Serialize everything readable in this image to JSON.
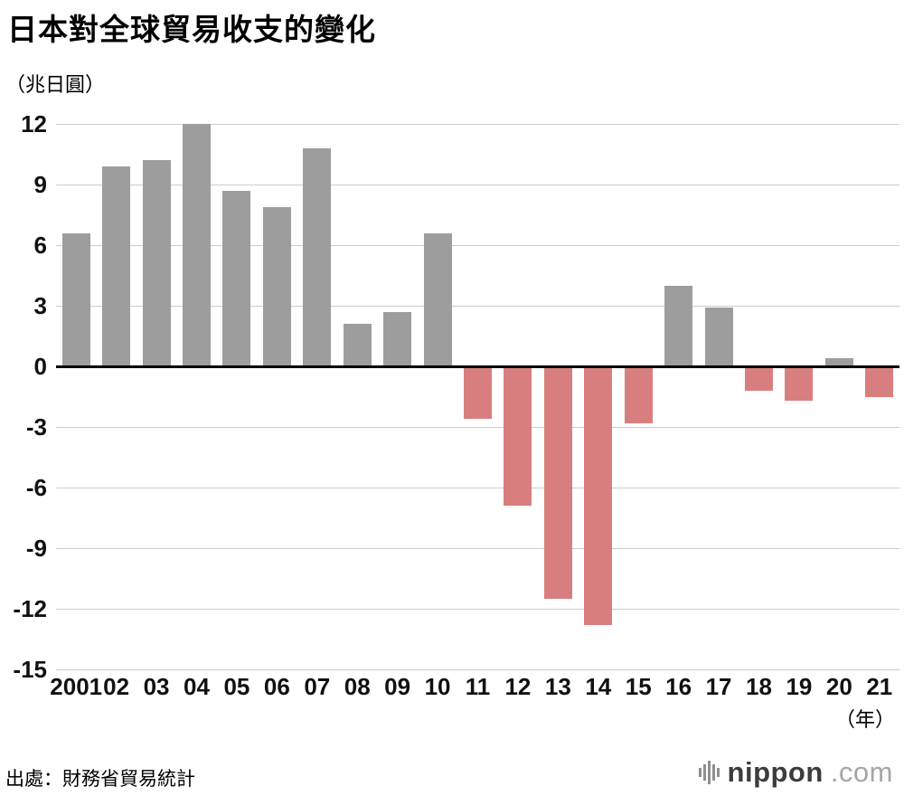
{
  "title": "日本對全球貿易收支的變化",
  "unit_label": "（兆日圓）",
  "axis": {
    "year_suffix": "（年）"
  },
  "source": "出處：財務省貿易統計",
  "logo": {
    "name": "nippon",
    "tld": ".com"
  },
  "chart_data": {
    "type": "bar",
    "title": "日本對全球貿易收支的變化",
    "ylabel": "（兆日圓）",
    "xlabel": "（年）",
    "categories": [
      "2001",
      "02",
      "03",
      "04",
      "05",
      "06",
      "07",
      "08",
      "09",
      "10",
      "11",
      "12",
      "13",
      "14",
      "15",
      "16",
      "17",
      "18",
      "19",
      "20",
      "21"
    ],
    "values": [
      6.6,
      9.9,
      10.2,
      12.0,
      8.7,
      7.9,
      10.8,
      2.1,
      2.7,
      6.6,
      -2.6,
      -6.9,
      -11.5,
      -12.8,
      -2.8,
      4.0,
      2.9,
      -1.2,
      -1.7,
      0.4,
      -1.5
    ],
    "ylim": [
      -15,
      12
    ],
    "yticks": [
      12,
      9,
      6,
      3,
      0,
      -3,
      -6,
      -9,
      -12,
      -15
    ],
    "positive_color": "#9d9d9d",
    "negative_color": "#d97e7e",
    "grid": true,
    "legend": "none"
  }
}
